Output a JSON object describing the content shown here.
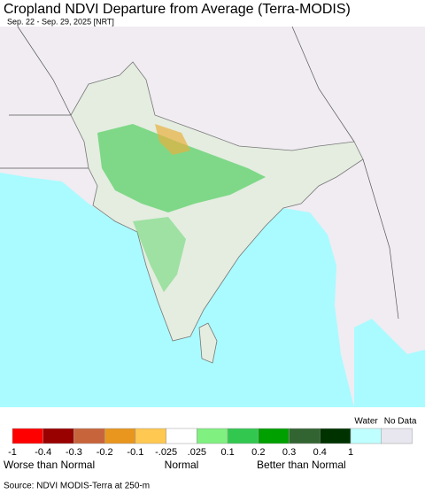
{
  "title": "Cropland NDVI Departure from Average (Terra-MODIS)",
  "subtitle": "Sep. 22 - Sep. 29, 2025 [NRT]",
  "legend": {
    "colors": [
      "#ff0000",
      "#990000",
      "#c8643c",
      "#e8961e",
      "#ffc850",
      "#ffffff",
      "#80f080",
      "#32c850",
      "#00a000",
      "#326432",
      "#003200"
    ],
    "ticks": [
      "-1",
      "-0.4",
      "-0.3",
      "-0.2",
      "-0.1",
      "-.025",
      ".025",
      "0.1",
      "0.2",
      "0.3",
      "0.4",
      "1"
    ],
    "extra": [
      {
        "label": "Water",
        "color": "#bfffff"
      },
      {
        "label": "No Data",
        "color": "#e8e6ee"
      }
    ],
    "captions": [
      "Worse than Normal",
      "Normal",
      "Better than Normal"
    ]
  },
  "source": "Source: NDVI MODIS-Terra at 250-m"
}
